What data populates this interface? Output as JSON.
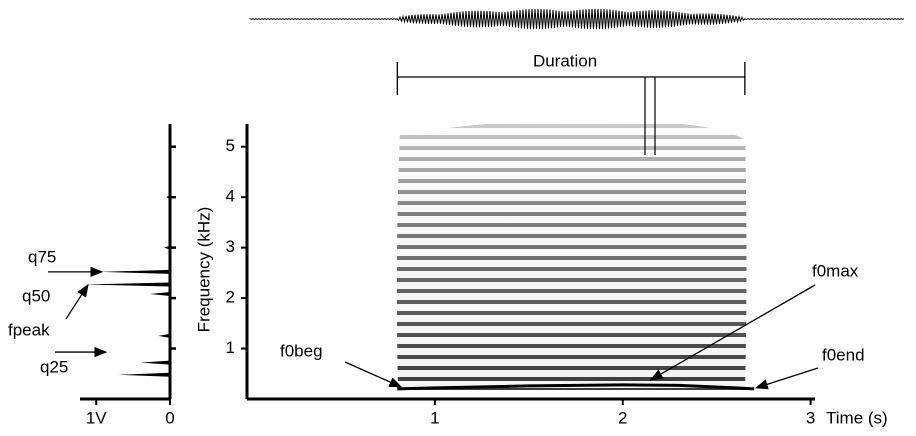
{
  "chart_data": [
    {
      "type": "spectrum",
      "xlim": [
        1.22,
        0
      ],
      "xticks": [
        {
          "value": 1,
          "label": "1V"
        },
        0
      ],
      "ylim": [
        0,
        5.45
      ],
      "yticks": [
        1,
        2,
        3,
        4,
        5
      ],
      "ytick_labels": false,
      "freqs": [
        0.48,
        0.72,
        1.25,
        2.08,
        2.27,
        2.52,
        3.0,
        4.0
      ],
      "values": [
        0.7,
        0.4,
        0.16,
        0.27,
        1.16,
        0.95,
        0.08,
        0.05
      ],
      "annotations": [
        {
          "text": "q75",
          "y": 2.52
        },
        {
          "text": "q50",
          "y": 2.3
        },
        {
          "text": "fpeak",
          "y": 2.3
        },
        {
          "text": "q25",
          "y": 0.93
        }
      ]
    },
    {
      "type": "spectrogram",
      "xlabel": "Time (s)",
      "ylabel": "Frequency (kHz)",
      "xlim": [
        0,
        3.05
      ],
      "xticks": [
        1,
        2,
        3
      ],
      "ylim": [
        0,
        5.45
      ],
      "yticks": [
        1,
        2,
        3,
        4,
        5
      ],
      "ytick_labels": true,
      "x": [
        0.8,
        1.0,
        1.5,
        2.0,
        2.3,
        2.6,
        2.7
      ],
      "values": [
        0.2,
        0.22,
        0.26,
        0.28,
        0.27,
        0.22,
        0.2
      ],
      "duration": {
        "label": "Duration",
        "x": [
          0.8,
          2.65
        ]
      },
      "annotations": [
        {
          "text": "f0beg",
          "x": 0.82,
          "y": 0.24
        },
        {
          "text": "f0max",
          "x": 2.15,
          "y": 0.38
        },
        {
          "text": "f0end",
          "x": 2.71,
          "y": 0.22
        }
      ]
    }
  ]
}
